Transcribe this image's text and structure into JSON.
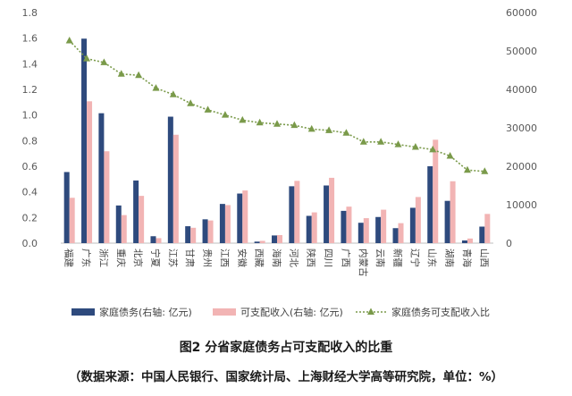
{
  "chart_data": {
    "type": "bar",
    "categories": [
      "福建",
      "广东",
      "浙江",
      "重庆",
      "北京",
      "宁夏",
      "江苏",
      "甘肃",
      "贵州",
      "江西",
      "安徽",
      "西藏",
      "海南",
      "河北",
      "陕西",
      "四川",
      "广西",
      "内蒙古",
      "云南",
      "新疆",
      "辽宁",
      "山东",
      "湖南",
      "青海",
      "山西"
    ],
    "series": [
      {
        "name": "家庭债务(右轴: 亿元)",
        "axis": "right",
        "kind": "bar",
        "color": "#2E4A7D",
        "values": [
          18500,
          53200,
          33800,
          9800,
          16300,
          1800,
          32900,
          4400,
          6200,
          10200,
          12900,
          400,
          2000,
          14800,
          7100,
          15000,
          8400,
          5300,
          6800,
          3900,
          9200,
          20000,
          11000,
          700,
          4300
        ]
      },
      {
        "name": "可支配收入(右轴: 亿元)",
        "axis": "right",
        "kind": "bar",
        "color": "#F2B4B4",
        "values": [
          11800,
          36900,
          23900,
          7300,
          12300,
          1300,
          28200,
          4000,
          5900,
          9900,
          13700,
          600,
          2100,
          16200,
          8000,
          17000,
          9500,
          6500,
          8700,
          5200,
          12000,
          26900,
          16100,
          1200,
          7600
        ]
      },
      {
        "name": "家庭债务可支配收入比",
        "axis": "left",
        "kind": "line",
        "color": "#7A9A4A",
        "values": [
          1.58,
          1.44,
          1.41,
          1.32,
          1.31,
          1.21,
          1.16,
          1.09,
          1.04,
          1.0,
          0.96,
          0.94,
          0.93,
          0.92,
          0.89,
          0.88,
          0.86,
          0.79,
          0.79,
          0.77,
          0.75,
          0.73,
          0.68,
          0.57,
          0.56
        ]
      }
    ],
    "y_left": {
      "ylim": [
        0,
        1.8
      ],
      "ticks": [
        "0.0",
        "0.2",
        "0.4",
        "0.6",
        "0.8",
        "1.0",
        "1.2",
        "1.4",
        "1.6",
        "1.8"
      ]
    },
    "y_right": {
      "ylim": [
        0,
        60000
      ],
      "ticks": [
        "0",
        "10000",
        "20000",
        "30000",
        "40000",
        "50000",
        "60000"
      ]
    },
    "grid": false,
    "legend_position": "bottom",
    "title": "图2  分省家庭债务占可支配收入的比重",
    "source_note": "（数据来源：中国人民银行、国家统计局、上海财经大学高等研究院，单位：%）"
  }
}
